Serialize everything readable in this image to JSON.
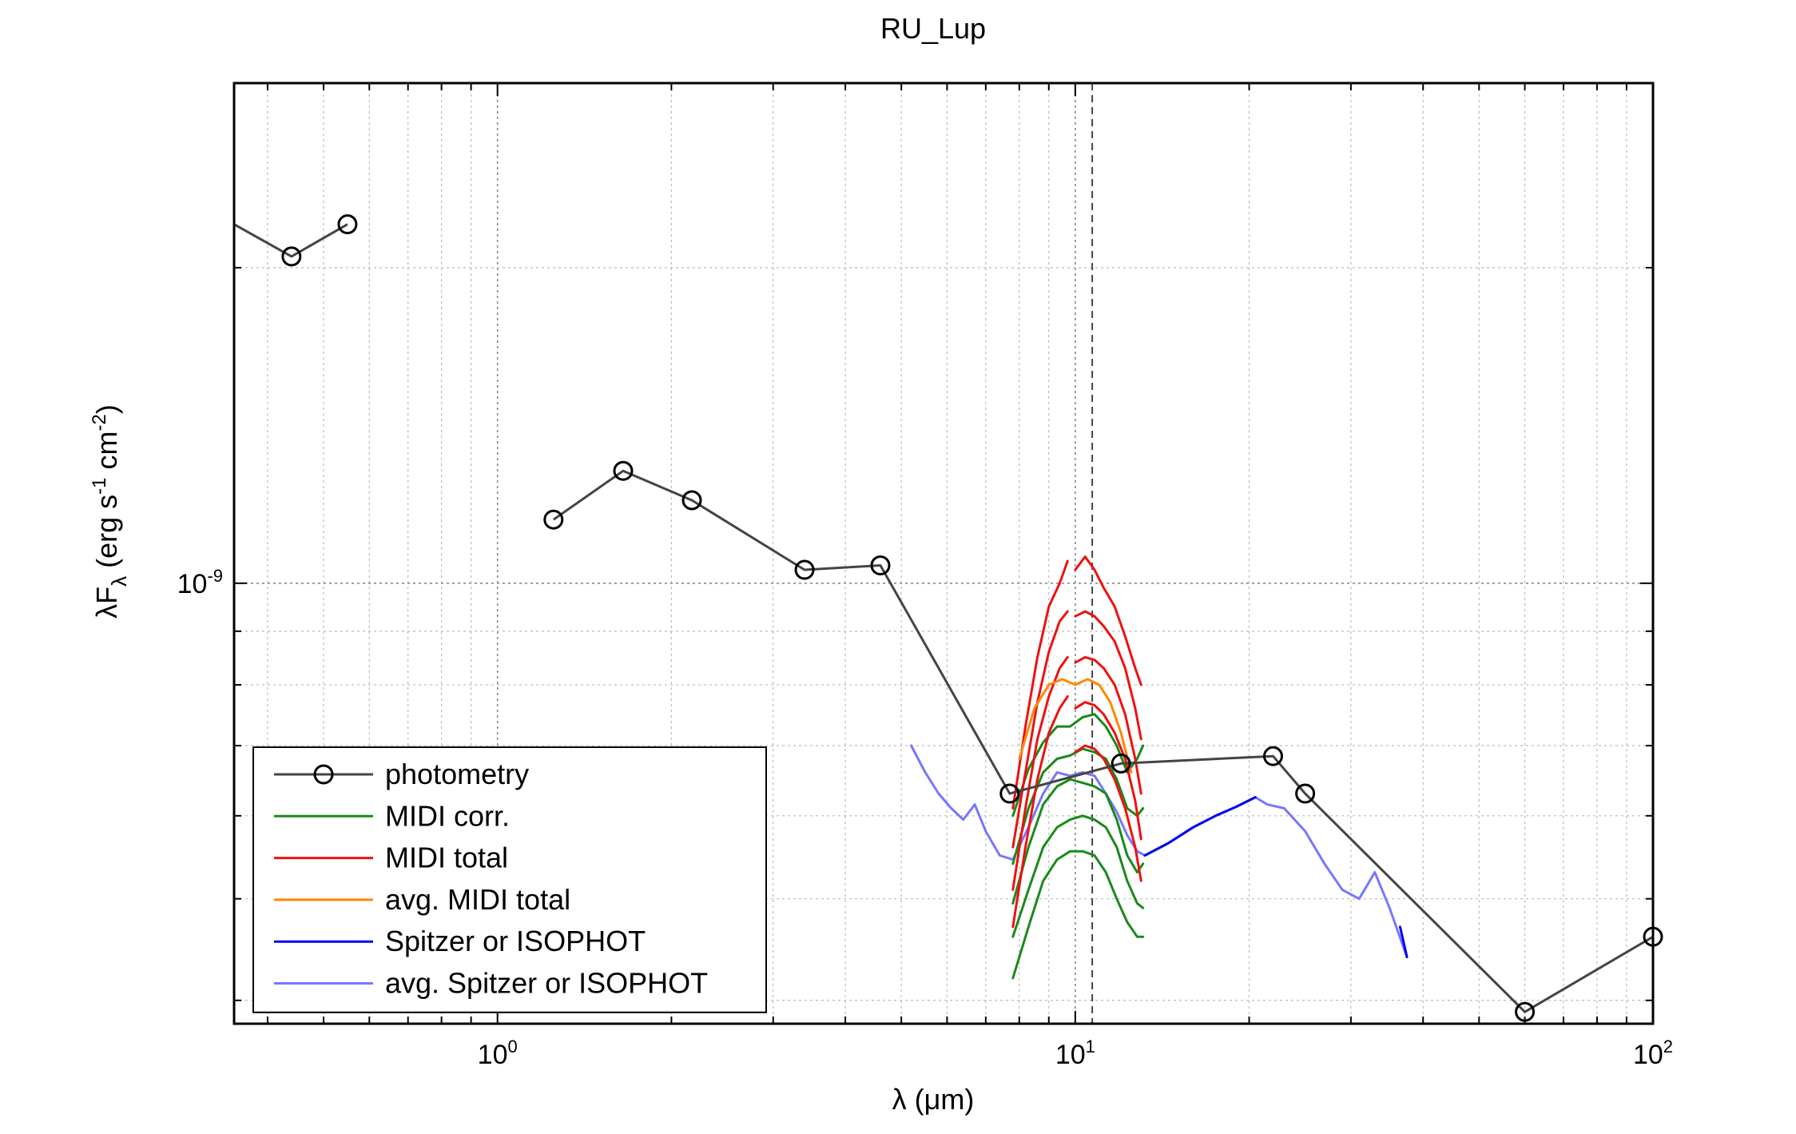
{
  "chart_data": {
    "type": "line",
    "title": "RU_Lup",
    "xlabel": "λ (μm)",
    "ylabel": "λF",
    "ylabel_subscript": "λ",
    "ylabel_units": "(erg s",
    "ylabel_units_sup1": "-1",
    "ylabel_units_mid": " cm",
    "ylabel_units_sup2": "-2",
    "ylabel_units_end": ")",
    "x_scale": "log",
    "y_scale": "log",
    "xlim": [
      0.35,
      100
    ],
    "ylim": [
      3.8e-10,
      3e-09
    ],
    "grid": true,
    "x_ticks": [
      {
        "value": 1,
        "base": "10",
        "exp": "0"
      },
      {
        "value": 10,
        "base": "10",
        "exp": "1"
      },
      {
        "value": 100,
        "base": "10",
        "exp": "2"
      }
    ],
    "y_ticks": [
      {
        "value": 1e-09,
        "base": "10",
        "exp": "-9"
      }
    ],
    "vline_x": 10.7,
    "legend_position": "bottom-left",
    "colors": {
      "photometry": "#444444",
      "midi_corr": "#1a8a1a",
      "midi_total": "#ee1111",
      "avg_midi_total": "#ff8800",
      "spitzer": "#0000ee",
      "avg_spitzer": "#7777ff"
    },
    "series": [
      {
        "name": "photometry",
        "color_key": "photometry",
        "marker": "circle",
        "segments": [
          [
            [
              0.35,
              2.2e-09
            ],
            [
              0.44,
              2.05e-09
            ],
            [
              0.55,
              2.2e-09
            ]
          ],
          [
            [
              1.25,
              1.15e-09
            ],
            [
              1.65,
              1.28e-09
            ],
            [
              2.17,
              1.2e-09
            ],
            [
              3.4,
              1.03e-09
            ],
            [
              4.6,
              1.04e-09
            ],
            [
              7.7,
              6.3e-10
            ],
            [
              12.0,
              6.73e-10
            ],
            [
              22.0,
              6.84e-10
            ],
            [
              25.0,
              6.3e-10
            ],
            [
              60.0,
              3.9e-10
            ],
            [
              100.0,
              4.6e-10
            ]
          ]
        ],
        "marker_points": [
          [
            0.44,
            2.05e-09
          ],
          [
            0.55,
            2.2e-09
          ],
          [
            1.25,
            1.15e-09
          ],
          [
            1.65,
            1.28e-09
          ],
          [
            2.17,
            1.2e-09
          ],
          [
            3.4,
            1.03e-09
          ],
          [
            4.6,
            1.04e-09
          ],
          [
            7.7,
            6.3e-10
          ],
          [
            12.0,
            6.73e-10
          ],
          [
            22.0,
            6.84e-10
          ],
          [
            25.0,
            6.3e-10
          ],
          [
            60.0,
            3.9e-10
          ],
          [
            100.0,
            4.6e-10
          ]
        ]
      },
      {
        "name": "MIDI corr.",
        "color_key": "midi_corr",
        "curves": [
          {
            "x": [
              7.8,
              8.3,
              8.8,
              9.3,
              9.8,
              10.3,
              10.8,
              11.3,
              11.8,
              12.3,
              12.8,
              13.1
            ],
            "y": [
              6e-10,
              6.65e-10,
              7.05e-10,
              7.3e-10,
              7.3e-10,
              7.45e-10,
              7.5e-10,
              7.3e-10,
              7e-10,
              6.6e-10,
              6.8e-10,
              7e-10
            ]
          },
          {
            "x": [
              7.8,
              8.3,
              8.8,
              9.3,
              9.8,
              10.3,
              10.8,
              11.3,
              11.8,
              12.3,
              12.8,
              13.1
            ],
            "y": [
              5.4e-10,
              6.1e-10,
              6.6e-10,
              6.8e-10,
              6.85e-10,
              6.95e-10,
              6.9e-10,
              6.8e-10,
              6.5e-10,
              6.1e-10,
              6e-10,
              6.1e-10
            ]
          },
          {
            "x": [
              7.8,
              8.3,
              8.8,
              9.3,
              9.8,
              10.3,
              10.8,
              11.3,
              11.8,
              12.3,
              12.8,
              13.1
            ],
            "y": [
              4.95e-10,
              5.6e-10,
              6.15e-10,
              6.4e-10,
              6.5e-10,
              6.45e-10,
              6.4e-10,
              6.3e-10,
              5.95e-10,
              5.5e-10,
              5.3e-10,
              5.4e-10
            ]
          },
          {
            "x": [
              7.8,
              8.3,
              8.8,
              9.3,
              9.8,
              10.3,
              10.8,
              11.3,
              11.8,
              12.3,
              12.8,
              13.1
            ],
            "y": [
              4.6e-10,
              5.1e-10,
              5.6e-10,
              5.85e-10,
              5.95e-10,
              6e-10,
              5.95e-10,
              5.85e-10,
              5.6e-10,
              5.2e-10,
              4.95e-10,
              4.9e-10
            ]
          },
          {
            "x": [
              7.8,
              8.3,
              8.8,
              9.3,
              9.8,
              10.3,
              10.8,
              11.3,
              11.8,
              12.3,
              12.8,
              13.1
            ],
            "y": [
              4.2e-10,
              4.7e-10,
              5.2e-10,
              5.45e-10,
              5.55e-10,
              5.55e-10,
              5.5e-10,
              5.3e-10,
              5e-10,
              4.75e-10,
              4.6e-10,
              4.6e-10
            ]
          }
        ]
      },
      {
        "name": "MIDI total",
        "color_key": "midi_total",
        "curves": [
          {
            "x": [
              7.8,
              8.2,
              8.6,
              9.0,
              9.4,
              9.7
            ],
            "y": [
              6.1e-10,
              7.3e-10,
              8.5e-10,
              9.5e-10,
              1e-09,
              1.05e-09
            ]
          },
          {
            "x": [
              7.8,
              8.2,
              8.6,
              9.0,
              9.4,
              9.7
            ],
            "y": [
              5.6e-10,
              6.6e-10,
              7.7e-10,
              8.6e-10,
              9.2e-10,
              9.4e-10
            ]
          },
          {
            "x": [
              7.8,
              8.2,
              8.6,
              9.0,
              9.4,
              9.7
            ],
            "y": [
              5.1e-10,
              6.1e-10,
              7.1e-10,
              7.8e-10,
              8.3e-10,
              8.5e-10
            ]
          },
          {
            "x": [
              7.8,
              8.2,
              8.6,
              9.0,
              9.4,
              9.7
            ],
            "y": [
              4.7e-10,
              5.6e-10,
              6.5e-10,
              7.2e-10,
              7.6e-10,
              7.8e-10
            ]
          },
          {
            "x": [
              10.0,
              10.4,
              10.8,
              11.2,
              11.7,
              12.2,
              12.7,
              13.0
            ],
            "y": [
              1.03e-09,
              1.06e-09,
              1.03e-09,
              9.9e-10,
              9.5e-10,
              8.9e-10,
              8.3e-10,
              8e-10
            ]
          },
          {
            "x": [
              10.0,
              10.4,
              10.8,
              11.2,
              11.7,
              12.2,
              12.7,
              13.0
            ],
            "y": [
              9.3e-10,
              9.4e-10,
              9.3e-10,
              9.1e-10,
              8.8e-10,
              8.3e-10,
              7.6e-10,
              7.1e-10
            ]
          },
          {
            "x": [
              10.0,
              10.4,
              10.8,
              11.2,
              11.7,
              12.2,
              12.7,
              13.0
            ],
            "y": [
              8.4e-10,
              8.5e-10,
              8.45e-10,
              8.3e-10,
              8e-10,
              7.5e-10,
              6.8e-10,
              6.3e-10
            ]
          },
          {
            "x": [
              10.0,
              10.4,
              10.8,
              11.2,
              11.7,
              12.2,
              12.7,
              13.0
            ],
            "y": [
              7.6e-10,
              7.7e-10,
              7.65e-10,
              7.5e-10,
              7.2e-10,
              6.8e-10,
              6.2e-10,
              5.7e-10
            ]
          },
          {
            "x": [
              10.0,
              10.4,
              10.8,
              11.2,
              11.7,
              12.2,
              12.7,
              13.0
            ],
            "y": [
              6.9e-10,
              7e-10,
              6.95e-10,
              6.8e-10,
              6.5e-10,
              6.1e-10,
              5.6e-10,
              5.2e-10
            ]
          }
        ]
      },
      {
        "name": "avg. MIDI total",
        "color_key": "avg_midi_total",
        "curves": [
          {
            "x": [
              8.0,
              8.5,
              9.0,
              9.5,
              10.0,
              10.5,
              11.0,
              11.5,
              12.0,
              12.5
            ],
            "y": [
              6.8e-10,
              7.6e-10,
              8e-10,
              8.1e-10,
              8e-10,
              8.1e-10,
              8e-10,
              7.7e-10,
              7.2e-10,
              6.6e-10
            ]
          }
        ]
      },
      {
        "name": "Spitzer or ISOPHOT",
        "color_key": "spitzer",
        "curves": [
          {
            "x": [
              13.2,
              14.5,
              16.0,
              17.5,
              19.0,
              20.5
            ],
            "y": [
              5.5e-10,
              5.65e-10,
              5.85e-10,
              6e-10,
              6.12e-10,
              6.25e-10
            ]
          },
          {
            "x": [
              36.5,
              37.0,
              37.5
            ],
            "y": [
              4.7e-10,
              4.55e-10,
              4.4e-10
            ]
          }
        ]
      },
      {
        "name": "avg. Spitzer or ISOPHOT",
        "color_key": "avg_spitzer",
        "curves": [
          {
            "x": [
              5.2,
              5.5,
              5.8,
              6.1,
              6.4,
              6.7,
              7.0,
              7.4,
              7.8,
              8.3,
              8.8,
              9.3,
              9.8,
              10.3,
              10.8,
              11.3,
              11.8,
              12.3,
              12.8,
              13.2,
              14.5,
              16.0,
              17.5,
              19.0,
              20.5,
              21.5,
              23.0,
              25.0,
              27.0,
              29.0,
              31.0,
              33.0,
              35.0,
              37.5
            ],
            "y": [
              7e-10,
              6.6e-10,
              6.3e-10,
              6.1e-10,
              5.95e-10,
              6.15e-10,
              5.8e-10,
              5.5e-10,
              5.45e-10,
              5.85e-10,
              6.3e-10,
              6.6e-10,
              6.55e-10,
              6.6e-10,
              6.55e-10,
              6.3e-10,
              6.05e-10,
              5.75e-10,
              5.55e-10,
              5.5e-10,
              5.65e-10,
              5.85e-10,
              6e-10,
              6.12e-10,
              6.25e-10,
              6.15e-10,
              6.1e-10,
              5.8e-10,
              5.4e-10,
              5.1e-10,
              5e-10,
              5.3e-10,
              4.9e-10,
              4.4e-10
            ]
          }
        ]
      }
    ]
  }
}
